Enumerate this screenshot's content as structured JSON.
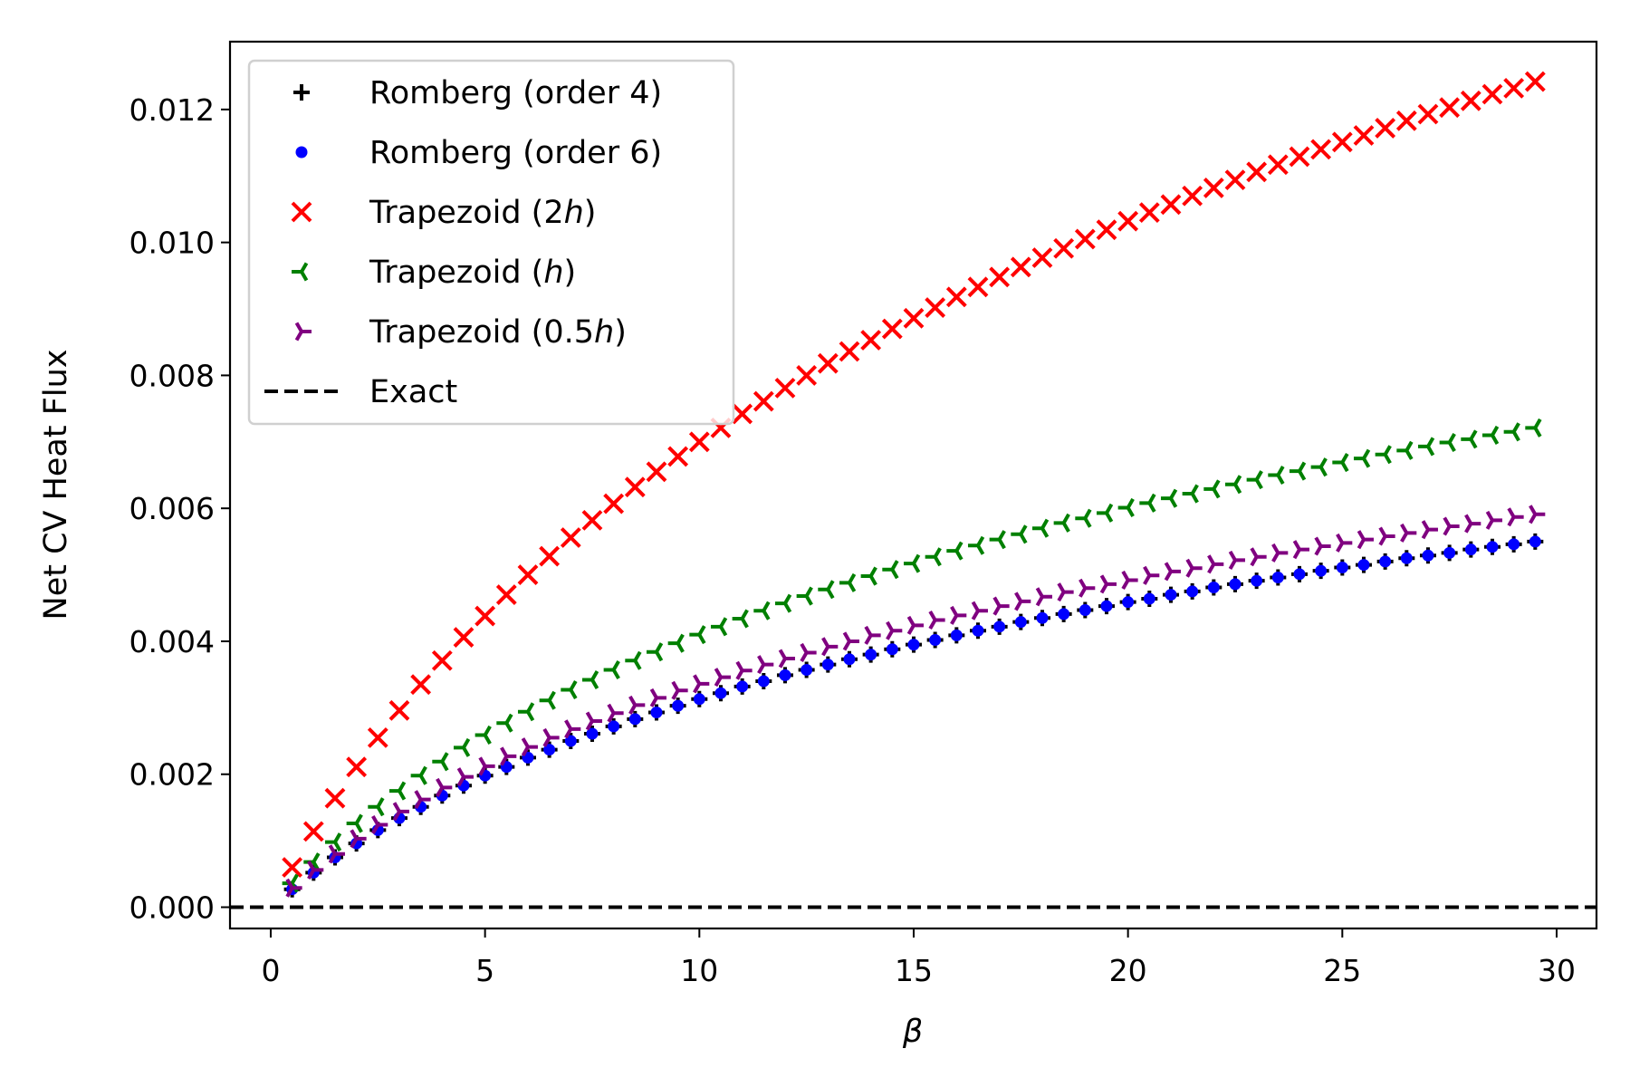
{
  "chart_data": {
    "type": "scatter",
    "title": "",
    "xlabel": "β",
    "ylabel": "Net CV Heat Flux",
    "xlim": [
      -0.95,
      30.93
    ],
    "ylim": [
      -0.00032,
      0.01302
    ],
    "xticks": [
      "0",
      "5",
      "10",
      "15",
      "20",
      "25",
      "30"
    ],
    "yticks": [
      "0.000",
      "0.002",
      "0.004",
      "0.006",
      "0.008",
      "0.010",
      "0.012"
    ],
    "grid": false,
    "legend_position": "top-left",
    "x": [
      0.5,
      1,
      1.5,
      2,
      2.5,
      3,
      3.5,
      4,
      4.5,
      5,
      5.5,
      6,
      6.5,
      7,
      7.5,
      8,
      8.5,
      9,
      9.5,
      10,
      10.5,
      11,
      11.5,
      12,
      12.5,
      13,
      13.5,
      14,
      14.5,
      15,
      15.5,
      16,
      16.5,
      17,
      17.5,
      18,
      18.5,
      19,
      19.5,
      20,
      20.5,
      21,
      21.5,
      22,
      22.5,
      23,
      23.5,
      24,
      24.5,
      25,
      25.5,
      26,
      26.5,
      27,
      27.5,
      28,
      28.5,
      29,
      29.5
    ],
    "series": [
      {
        "name": "Romberg (order 4)",
        "label_pre": "Romberg (order 4)",
        "label_italic": "",
        "label_post": "",
        "marker": "plus",
        "color": "#000000",
        "values": [
          0.00027,
          0.00052,
          0.00075,
          0.00096,
          0.00116,
          0.00134,
          0.00151,
          0.00168,
          0.00183,
          0.00198,
          0.00211,
          0.00225,
          0.00237,
          0.0025,
          0.00261,
          0.00272,
          0.00283,
          0.00293,
          0.00303,
          0.00313,
          0.00322,
          0.00332,
          0.0034,
          0.00349,
          0.00357,
          0.00365,
          0.00373,
          0.0038,
          0.00388,
          0.00395,
          0.00402,
          0.00409,
          0.00416,
          0.00422,
          0.00429,
          0.00435,
          0.00441,
          0.00447,
          0.00453,
          0.00459,
          0.00464,
          0.0047,
          0.00475,
          0.00481,
          0.00486,
          0.00491,
          0.00496,
          0.00501,
          0.00506,
          0.00511,
          0.00515,
          0.0052,
          0.00525,
          0.00529,
          0.00533,
          0.00538,
          0.00542,
          0.00546,
          0.0055
        ]
      },
      {
        "name": "Romberg (order 6)",
        "label_pre": "Romberg (order 6)",
        "label_italic": "",
        "label_post": "",
        "marker": "dot",
        "color": "#0000ff",
        "values": [
          0.00027,
          0.00052,
          0.00075,
          0.00096,
          0.00116,
          0.00134,
          0.00151,
          0.00168,
          0.00183,
          0.00198,
          0.00211,
          0.00225,
          0.00237,
          0.0025,
          0.00261,
          0.00272,
          0.00283,
          0.00293,
          0.00303,
          0.00313,
          0.00322,
          0.00332,
          0.0034,
          0.00349,
          0.00357,
          0.00365,
          0.00373,
          0.0038,
          0.00388,
          0.00395,
          0.00402,
          0.00409,
          0.00416,
          0.00422,
          0.00429,
          0.00435,
          0.00441,
          0.00447,
          0.00453,
          0.00459,
          0.00464,
          0.0047,
          0.00475,
          0.00481,
          0.00486,
          0.00491,
          0.00496,
          0.00501,
          0.00506,
          0.00511,
          0.00515,
          0.0052,
          0.00525,
          0.00529,
          0.00533,
          0.00538,
          0.00542,
          0.00546,
          0.0055
        ]
      },
      {
        "name": "Trapezoid (2h)",
        "label_pre": "Trapezoid (2",
        "label_italic": "h",
        "label_post": ")",
        "marker": "x",
        "color": "#ff0000",
        "values": [
          0.0006,
          0.00114,
          0.00164,
          0.00211,
          0.00255,
          0.00296,
          0.00335,
          0.00371,
          0.00406,
          0.00438,
          0.0047,
          0.005,
          0.00528,
          0.00556,
          0.00582,
          0.00607,
          0.00632,
          0.00655,
          0.00678,
          0.007,
          0.00721,
          0.00742,
          0.00761,
          0.00781,
          0.008,
          0.00818,
          0.00836,
          0.00853,
          0.0087,
          0.00886,
          0.00902,
          0.00918,
          0.00933,
          0.00948,
          0.00963,
          0.00977,
          0.00991,
          0.01005,
          0.01019,
          0.01032,
          0.01045,
          0.01057,
          0.0107,
          0.01082,
          0.01094,
          0.01106,
          0.01117,
          0.01129,
          0.0114,
          0.01151,
          0.01161,
          0.01172,
          0.01183,
          0.01193,
          0.01203,
          0.01213,
          0.01223,
          0.01232,
          0.01242
        ]
      },
      {
        "name": "Trapezoid (h)",
        "label_pre": "Trapezoid (",
        "label_italic": "h",
        "label_post": ")",
        "marker": "tri_left",
        "color": "#008000",
        "values": [
          0.00036,
          0.00068,
          0.00098,
          0.00126,
          0.00151,
          0.00175,
          0.00198,
          0.00219,
          0.0024,
          0.00259,
          0.00277,
          0.00294,
          0.00311,
          0.00327,
          0.00342,
          0.00357,
          0.00371,
          0.00384,
          0.00397,
          0.0041,
          0.00422,
          0.00434,
          0.00446,
          0.00457,
          0.00468,
          0.00478,
          0.00488,
          0.00498,
          0.00508,
          0.00517,
          0.00527,
          0.00536,
          0.00544,
          0.00553,
          0.00561,
          0.0057,
          0.00578,
          0.00585,
          0.00593,
          0.00601,
          0.00608,
          0.00615,
          0.00622,
          0.00629,
          0.00636,
          0.00643,
          0.0065,
          0.00656,
          0.00662,
          0.00669,
          0.00675,
          0.00681,
          0.00687,
          0.00693,
          0.00699,
          0.00704,
          0.0071,
          0.00715,
          0.00721
        ]
      },
      {
        "name": "Trapezoid (0.5h)",
        "label_pre": "Trapezoid (0.5",
        "label_italic": "h",
        "label_post": ")",
        "marker": "tri_right",
        "color": "#800080",
        "values": [
          0.00029,
          0.00056,
          0.0008,
          0.00103,
          0.00124,
          0.00144,
          0.00162,
          0.0018,
          0.00196,
          0.00212,
          0.00227,
          0.00241,
          0.00255,
          0.00268,
          0.0028,
          0.00292,
          0.00304,
          0.00315,
          0.00326,
          0.00336,
          0.00346,
          0.00356,
          0.00365,
          0.00374,
          0.00383,
          0.00392,
          0.004,
          0.00409,
          0.00416,
          0.00424,
          0.00432,
          0.00439,
          0.00446,
          0.00453,
          0.0046,
          0.00467,
          0.00474,
          0.0048,
          0.00486,
          0.00492,
          0.00499,
          0.00505,
          0.0051,
          0.00516,
          0.00522,
          0.00527,
          0.00533,
          0.00538,
          0.00543,
          0.00548,
          0.00553,
          0.00558,
          0.00563,
          0.00568,
          0.00573,
          0.00577,
          0.00582,
          0.00587,
          0.00591
        ]
      }
    ],
    "exact": {
      "name": "Exact",
      "label": "Exact",
      "value": 0.0,
      "style": "dashed",
      "color": "#000000"
    }
  }
}
